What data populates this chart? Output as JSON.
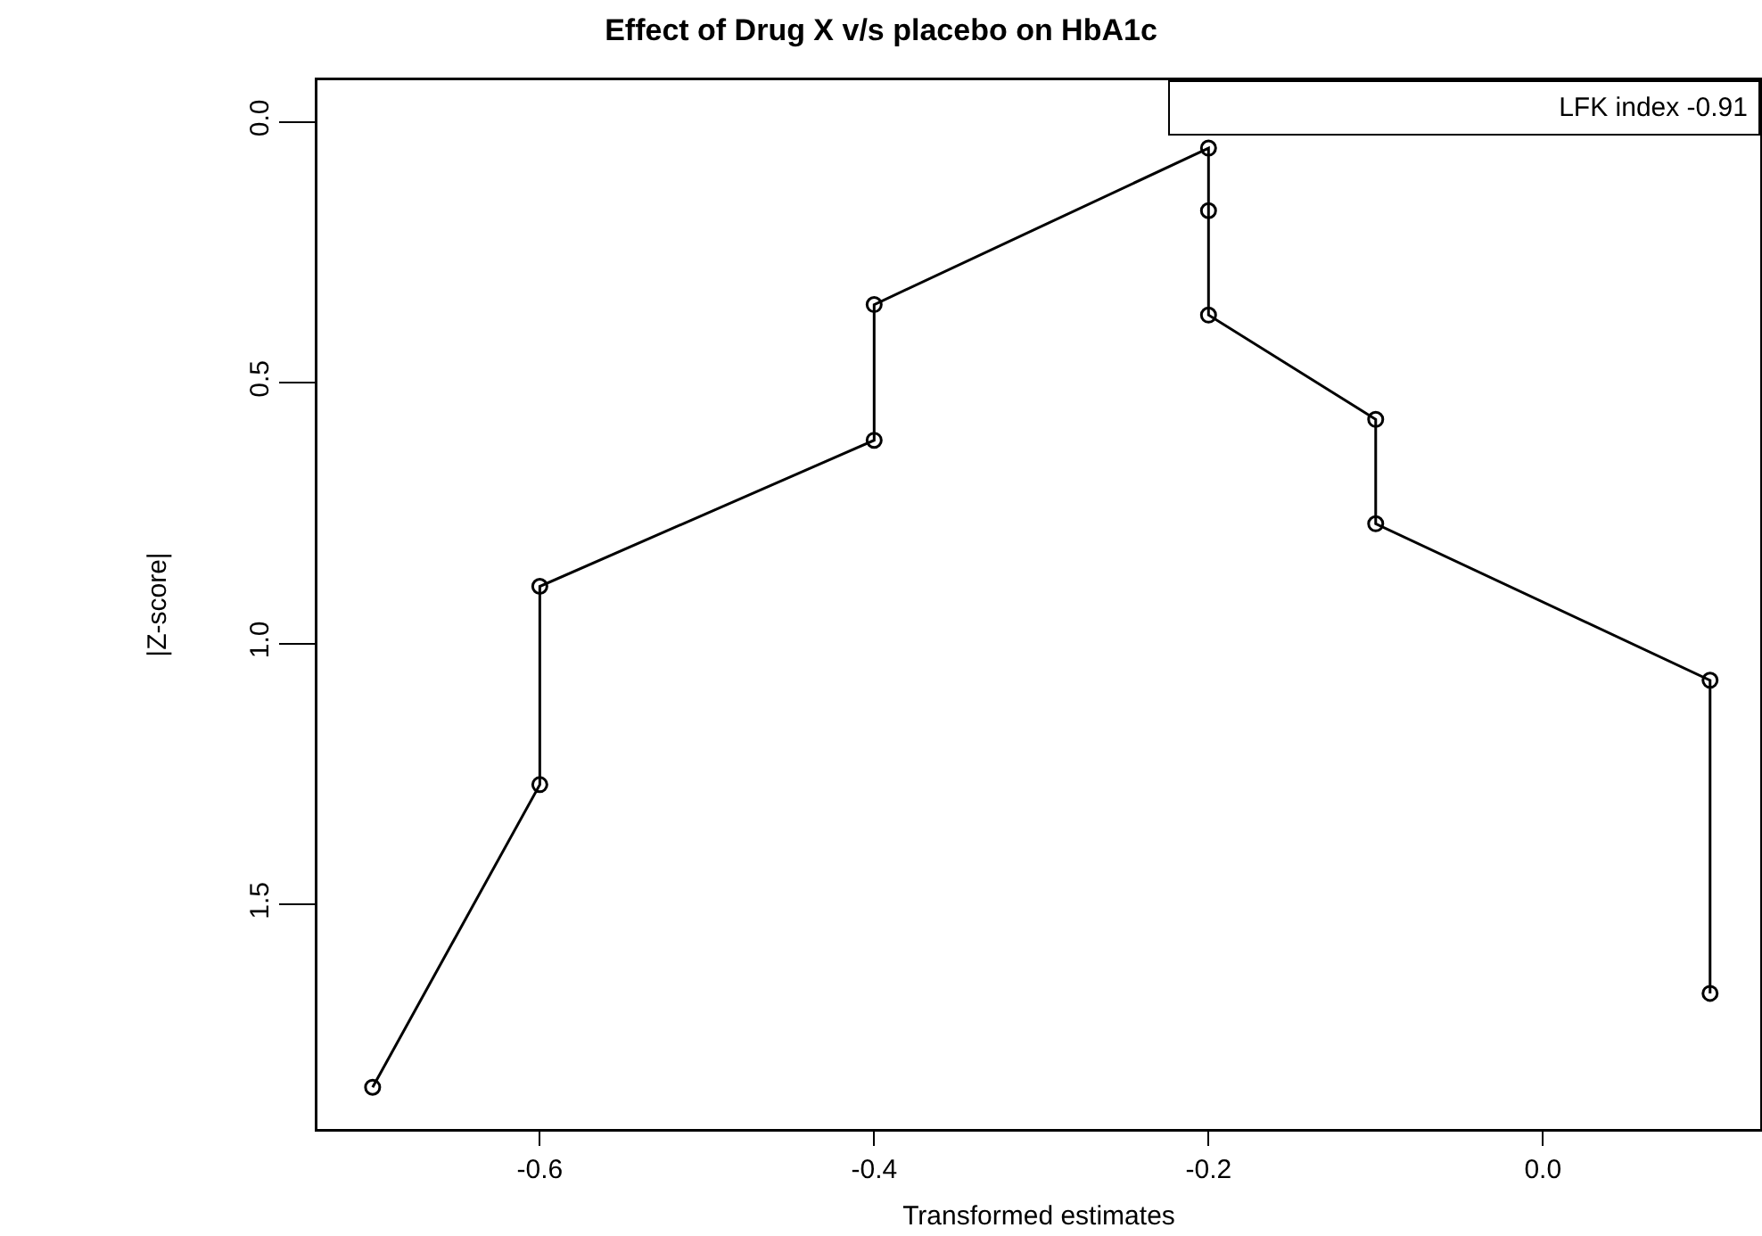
{
  "chart_data": {
    "type": "line",
    "title": "Effect of Drug X v/s placebo on HbA1c",
    "xlabel": "Transformed estimates",
    "ylabel": "|Z-score|",
    "x": [
      -0.7,
      -0.6,
      -0.6,
      -0.4,
      -0.4,
      -0.2,
      -0.2,
      -0.2,
      -0.1,
      -0.1,
      0.1,
      0.1
    ],
    "series": [
      {
        "color": "#000000",
        "values": [
          1.85,
          1.27,
          0.89,
          0.61,
          0.35,
          0.05,
          0.17,
          0.37,
          0.57,
          0.77,
          1.07,
          1.67
        ]
      }
    ],
    "xlim": [
      -0.733,
      0.13
    ],
    "ylim": [
      1.93,
      -0.08
    ],
    "xticks": [
      {
        "value": -0.6,
        "label": "-0.6"
      },
      {
        "value": -0.4,
        "label": "-0.4"
      },
      {
        "value": -0.2,
        "label": "-0.2"
      },
      {
        "value": 0,
        "label": "0.0"
      }
    ],
    "yticks": [
      {
        "value": 0,
        "label": "0.0"
      },
      {
        "value": 0.5,
        "label": "0.5"
      },
      {
        "value": 1,
        "label": "1.0"
      },
      {
        "value": 1.5,
        "label": "1.5"
      }
    ],
    "annotations": [
      "LFK index -0.91"
    ],
    "grid": false,
    "marker": "circle",
    "line_style": "solid"
  }
}
